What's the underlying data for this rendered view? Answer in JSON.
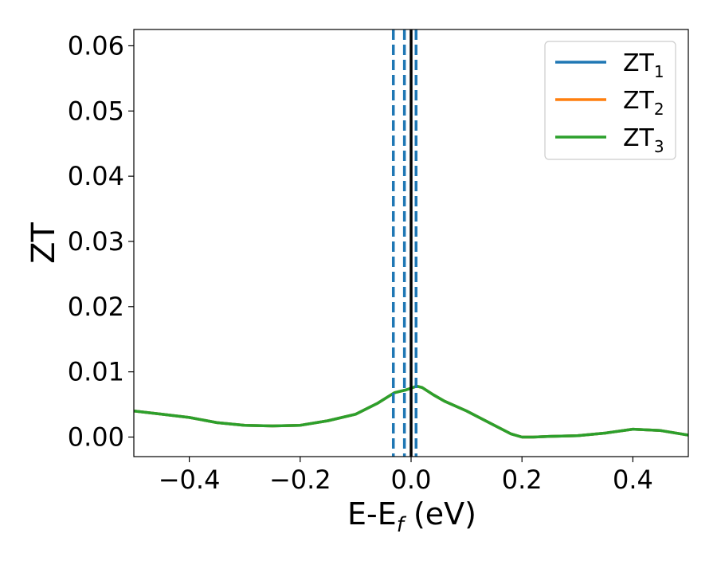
{
  "chart_data": {
    "type": "line",
    "xlabel_main": "E-E",
    "xlabel_sub": "f",
    "xlabel_unit": " (eV)",
    "ylabel": "ZT",
    "xlim": [
      -0.5,
      0.5
    ],
    "ylim": [
      -0.003,
      0.0625
    ],
    "x_ticks": [
      -0.4,
      -0.2,
      0.0,
      0.2,
      0.4
    ],
    "x_tick_labels": [
      "−0.4",
      "−0.2",
      "0.0",
      "0.2",
      "0.4"
    ],
    "y_ticks": [
      0.0,
      0.01,
      0.02,
      0.03,
      0.04,
      0.05,
      0.06
    ],
    "y_tick_labels": [
      "0.00",
      "0.01",
      "0.02",
      "0.03",
      "0.04",
      "0.05",
      "0.06"
    ],
    "grid": false,
    "legend_position": "top-right",
    "series": [
      {
        "name": "ZT",
        "name_sub": "1",
        "color": "#1f77b4",
        "x": [
          -0.5,
          -0.45,
          -0.4,
          -0.35,
          -0.3,
          -0.25,
          -0.2,
          -0.15,
          -0.1,
          -0.06,
          -0.03,
          -0.01,
          0.0,
          0.01,
          0.02,
          0.04,
          0.06,
          0.1,
          0.15,
          0.18,
          0.2,
          0.22,
          0.25,
          0.3,
          0.35,
          0.4,
          0.45,
          0.5
        ],
        "y": [
          0.004,
          0.0035,
          0.003,
          0.0022,
          0.0018,
          0.0017,
          0.0018,
          0.0025,
          0.0035,
          0.0052,
          0.0068,
          0.0072,
          0.0075,
          0.0078,
          0.0076,
          0.0065,
          0.0055,
          0.004,
          0.0018,
          0.0005,
          0.0,
          0.0,
          0.0001,
          0.0002,
          0.0006,
          0.0012,
          0.001,
          0.0003
        ]
      },
      {
        "name": "ZT",
        "name_sub": "2",
        "color": "#ff7f0e",
        "x": [
          -0.5,
          -0.45,
          -0.4,
          -0.35,
          -0.3,
          -0.25,
          -0.2,
          -0.15,
          -0.1,
          -0.06,
          -0.03,
          -0.01,
          0.0,
          0.01,
          0.02,
          0.04,
          0.06,
          0.1,
          0.15,
          0.18,
          0.2,
          0.22,
          0.25,
          0.3,
          0.35,
          0.4,
          0.45,
          0.5
        ],
        "y": [
          0.004,
          0.0035,
          0.003,
          0.0022,
          0.0018,
          0.0017,
          0.0018,
          0.0025,
          0.0035,
          0.0052,
          0.0068,
          0.0072,
          0.0075,
          0.0078,
          0.0076,
          0.0065,
          0.0055,
          0.004,
          0.0018,
          0.0005,
          0.0,
          0.0,
          0.0001,
          0.0002,
          0.0006,
          0.0012,
          0.001,
          0.0003
        ]
      },
      {
        "name": "ZT",
        "name_sub": "3",
        "color": "#2ca02c",
        "x": [
          -0.5,
          -0.45,
          -0.4,
          -0.35,
          -0.3,
          -0.25,
          -0.2,
          -0.15,
          -0.1,
          -0.06,
          -0.03,
          -0.01,
          0.0,
          0.01,
          0.02,
          0.04,
          0.06,
          0.1,
          0.15,
          0.18,
          0.2,
          0.22,
          0.25,
          0.3,
          0.35,
          0.4,
          0.45,
          0.5
        ],
        "y": [
          0.004,
          0.0035,
          0.003,
          0.0022,
          0.0018,
          0.0017,
          0.0018,
          0.0025,
          0.0035,
          0.0052,
          0.0068,
          0.0072,
          0.0075,
          0.0078,
          0.0076,
          0.0065,
          0.0055,
          0.004,
          0.0018,
          0.0005,
          0.0,
          0.0,
          0.0001,
          0.0002,
          0.0006,
          0.0012,
          0.001,
          0.0003
        ]
      }
    ],
    "vertical_lines": [
      {
        "x": -0.032,
        "style": "dashed",
        "color": "#1f77b4"
      },
      {
        "x": -0.012,
        "style": "dashed",
        "color": "#1f77b4"
      },
      {
        "x": 0.0,
        "style": "solid",
        "color": "#000000"
      },
      {
        "x": 0.009,
        "style": "dashed",
        "color": "#1f77b4"
      }
    ]
  }
}
